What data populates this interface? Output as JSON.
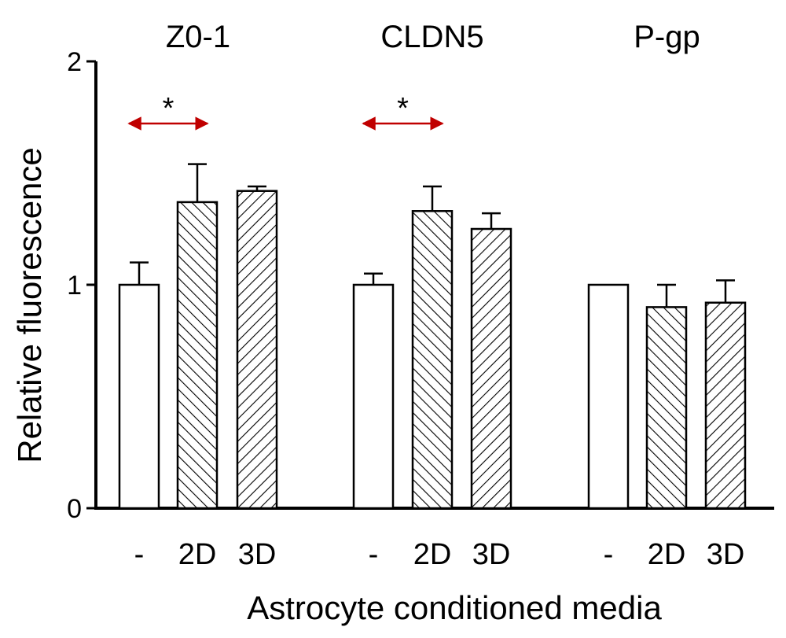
{
  "chart_data": {
    "type": "bar",
    "title": "",
    "xlabel": "Astrocyte conditioned media",
    "ylabel": "Relative fluorescence",
    "ylim": [
      0,
      2
    ],
    "yticks": [
      0,
      1,
      2
    ],
    "grid": false,
    "legend": "none",
    "conditions": [
      "-",
      "2D",
      "3D"
    ],
    "groups": [
      {
        "name": "ZO-1",
        "label": "Z0-1",
        "values": [
          1.0,
          1.37,
          1.42
        ],
        "errors": [
          0.1,
          0.17,
          0.02
        ],
        "significance": {
          "from": 0,
          "to": 1,
          "label": "*"
        }
      },
      {
        "name": "CLDN5",
        "label": "CLDN5",
        "values": [
          1.0,
          1.33,
          1.25
        ],
        "errors": [
          0.05,
          0.11,
          0.07
        ],
        "significance": {
          "from": 0,
          "to": 1,
          "label": "*"
        }
      },
      {
        "name": "P-gp",
        "label": "P-gp",
        "values": [
          1.0,
          0.9,
          0.92
        ],
        "errors": [
          0.0,
          0.1,
          0.1
        ],
        "significance": null
      }
    ],
    "pattern_by_condition": [
      "none",
      "hatch-backslash",
      "hatch-slash"
    ],
    "colors": {
      "bar_fill": "#ffffff",
      "bar_stroke": "#000000",
      "hatch": "#000000",
      "axis": "#000000",
      "significance_arrow": "#c00000"
    }
  }
}
